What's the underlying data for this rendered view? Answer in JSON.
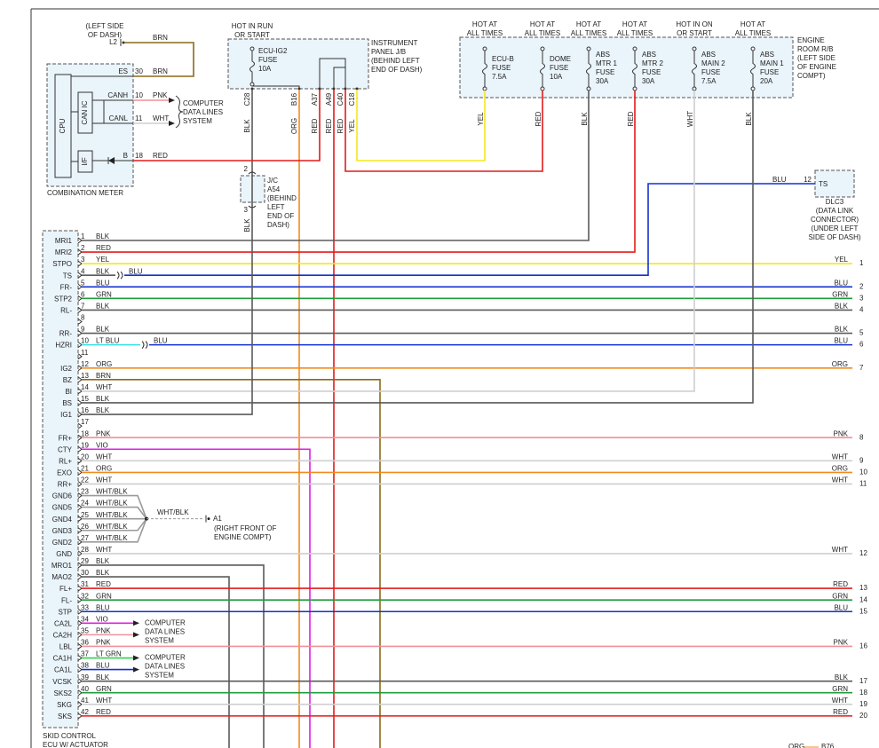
{
  "engine_room": {
    "label": [
      "ENGINE",
      "ROOM R/B",
      "(LEFT SIDE",
      "OF ENGINE",
      "COMPT)"
    ],
    "fuses": [
      {
        "header": [
          "HOT AT",
          "ALL TIMES"
        ],
        "label": [
          "ECU-B",
          "FUSE",
          "7.5A"
        ],
        "wire": "YEL"
      },
      {
        "header": [
          "HOT AT",
          "ALL TIMES"
        ],
        "label": [
          "DOME",
          "FUSE",
          "10A"
        ],
        "wire": "RED"
      },
      {
        "header": [
          "HOT AT",
          "ALL TIMES"
        ],
        "label": [
          "ABS",
          "MTR 1",
          "FUSE",
          "30A"
        ],
        "wire": "BLK"
      },
      {
        "header": [
          "HOT AT",
          "ALL TIMES"
        ],
        "label": [
          "ABS",
          "MTR 2",
          "FUSE",
          "30A"
        ],
        "wire": "RED"
      },
      {
        "header": [
          "HOT IN ON",
          "OR START"
        ],
        "label": [
          "ABS",
          "MAIN 2",
          "FUSE",
          "7.5A"
        ],
        "wire": "WHT"
      },
      {
        "header": [
          "HOT AT",
          "ALL TIMES"
        ],
        "label": [
          "ABS",
          "MAIN 1",
          "FUSE",
          "20A"
        ],
        "wire": "BLK"
      }
    ]
  },
  "junction_block": {
    "header": [
      "HOT IN RUN",
      "OR START"
    ],
    "fuse": [
      "ECU-IG2",
      "FUSE",
      "10A"
    ],
    "label": [
      "INSTRUMENT",
      "PANEL J/B",
      "(BEHIND LEFT",
      "END OF DASH)"
    ],
    "pins": [
      {
        "name": "C28",
        "wire": "BLK"
      },
      {
        "name": "B16",
        "wire": "ORG"
      },
      {
        "name": "A37",
        "wire": "RED"
      },
      {
        "name": "A49",
        "wire": "RED"
      },
      {
        "name": "C40",
        "wire": "RED"
      },
      {
        "name": "C18",
        "wire": "YEL"
      }
    ]
  },
  "junction_connector": {
    "label": [
      "J/C",
      "A54",
      "(BEHIND",
      "LEFT",
      "END OF",
      "DASH)"
    ],
    "pins": [
      2,
      3
    ],
    "wire": "BLK"
  },
  "combination_meter": {
    "label": "COMBINATION METER",
    "location": [
      "(LEFT SIDE",
      "OF DASH)"
    ],
    "ground": {
      "name": "L2",
      "wire": "BRN"
    },
    "blocks": [
      "CPU",
      "CAN IC",
      "I/F"
    ],
    "pins": [
      {
        "name": "ES",
        "num": 30,
        "wire": "BRN"
      },
      {
        "name": "CANH",
        "num": 10,
        "wire": "PNK"
      },
      {
        "name": "CANL",
        "num": 11,
        "wire": "WHT"
      },
      {
        "name": "B",
        "num": 18,
        "wire": "RED"
      }
    ],
    "data_lines": [
      "COMPUTER",
      "DATA LINES",
      "SYSTEM"
    ]
  },
  "dlc3": {
    "pin_name": "TS",
    "num": 12,
    "wire": "BLU",
    "label": [
      "DLC3",
      "(DATA LINK",
      "CONNECTOR)",
      "(UNDER LEFT",
      "SIDE OF DASH)"
    ]
  },
  "ecu": {
    "label": [
      "SKID CONTROL",
      "ECU W/ ACTUATOR"
    ],
    "pins": [
      {
        "num": 1,
        "name": "MRI1",
        "color": "BLK"
      },
      {
        "num": 2,
        "name": "MRI2",
        "color": "RED"
      },
      {
        "num": 3,
        "name": "STPO",
        "color": "YEL",
        "right_color": "YEL",
        "right_num": 1
      },
      {
        "num": 4,
        "name": "TS",
        "color": "BLK",
        "splice_color": "BLU"
      },
      {
        "num": 5,
        "name": "FR-",
        "color": "BLU",
        "right_color": "BLU",
        "right_num": 2
      },
      {
        "num": 6,
        "name": "STP2",
        "color": "GRN",
        "right_color": "GRN",
        "right_num": 3
      },
      {
        "num": 7,
        "name": "RL-",
        "color": "BLK",
        "right_color": "BLK",
        "right_num": 4
      },
      {
        "num": 8
      },
      {
        "num": 9,
        "name": "RR-",
        "color": "BLK",
        "right_color": "BLK",
        "right_num": 5
      },
      {
        "num": 10,
        "name": "HZRI",
        "color": "LT BLU",
        "splice_color": "BLU",
        "right_color": "BLU",
        "right_num": 6
      },
      {
        "num": 11
      },
      {
        "num": 12,
        "name": "IG2",
        "color": "ORG",
        "right_color": "ORG",
        "right_num": 7
      },
      {
        "num": 13,
        "name": "BZ",
        "color": "BRN"
      },
      {
        "num": 14,
        "name": "BI",
        "color": "WHT"
      },
      {
        "num": 15,
        "name": "BS",
        "color": "BLK"
      },
      {
        "num": 16,
        "name": "IG1",
        "color": "BLK"
      },
      {
        "num": 17
      },
      {
        "num": 18,
        "name": "FR+",
        "color": "PNK",
        "right_color": "PNK",
        "right_num": 8
      },
      {
        "num": 19,
        "name": "CTY",
        "color": "VIO"
      },
      {
        "num": 20,
        "name": "RL+",
        "color": "WHT",
        "right_color": "WHT",
        "right_num": 9
      },
      {
        "num": 21,
        "name": "EXO",
        "color": "ORG",
        "right_color": "ORG",
        "right_num": 10
      },
      {
        "num": 22,
        "name": "RR+",
        "color": "WHT",
        "right_color": "WHT",
        "right_num": 11
      },
      {
        "num": 23,
        "name": "GND6",
        "color": "WHT/BLK"
      },
      {
        "num": 24,
        "name": "GND5",
        "color": "WHT/BLK"
      },
      {
        "num": 25,
        "name": "GND4",
        "color": "WHT/BLK"
      },
      {
        "num": 26,
        "name": "GND3",
        "color": "WHT/BLK"
      },
      {
        "num": 27,
        "name": "GND2",
        "color": "WHT/BLK"
      },
      {
        "num": 28,
        "name": "GND",
        "color": "WHT",
        "right_color": "WHT",
        "right_num": 12
      },
      {
        "num": 29,
        "name": "MRO1",
        "color": "BLK"
      },
      {
        "num": 30,
        "name": "MAO2",
        "color": "BLK"
      },
      {
        "num": 31,
        "name": "FL+",
        "color": "RED",
        "right_color": "RED",
        "right_num": 13
      },
      {
        "num": 32,
        "name": "FL-",
        "color": "GRN",
        "right_color": "GRN",
        "right_num": 14
      },
      {
        "num": 33,
        "name": "STP",
        "color": "BLU",
        "right_color": "BLU",
        "right_num": 15
      },
      {
        "num": 34,
        "name": "CA2L",
        "color": "VIO"
      },
      {
        "num": 35,
        "name": "CA2H",
        "color": "PNK"
      },
      {
        "num": 36,
        "name": "LBL",
        "color": "PNK",
        "right_color": "PNK",
        "right_num": 16
      },
      {
        "num": 37,
        "name": "CA1H",
        "color": "LT GRN"
      },
      {
        "num": 38,
        "name": "CA1L",
        "color": "BLU"
      },
      {
        "num": 39,
        "name": "VCSK",
        "color": "BLK",
        "right_color": "BLK",
        "right_num": 17
      },
      {
        "num": 40,
        "name": "SKS2",
        "color": "GRN",
        "right_color": "GRN",
        "right_num": 18
      },
      {
        "num": 41,
        "name": "SKG",
        "color": "WHT",
        "right_color": "WHT",
        "right_num": 19
      },
      {
        "num": 42,
        "name": "SKS",
        "color": "RED",
        "right_color": "RED",
        "right_num": 20
      }
    ],
    "ground": {
      "wire": "WHT/BLK",
      "name": "A1",
      "location": [
        "(RIGHT FRONT OF",
        "ENGINE COMPT)"
      ]
    },
    "data_lines": [
      [
        "COMPUTER",
        "DATA LINES",
        "SYSTEM"
      ],
      [
        "COMPUTER",
        "DATA LINES",
        "SYSTEM"
      ]
    ]
  },
  "footer": {
    "wire": "ORG",
    "connector": "B76"
  },
  "wire_colors": {
    "BLK": "#5a5a5a",
    "RED": "#e21b1b",
    "YEL": "#f2e81e",
    "BLU": "#1230d2",
    "GRN": "#1f9c3c",
    "LT BLU": "#2fe0e6",
    "ORG": "#f28a1e",
    "BRN": "#8a6a1a",
    "WHT": "#cfcfcf",
    "PNK": "#f0909a",
    "VIO": "#e01ee6",
    "WHT/BLK": "#9a9a9a",
    "LT GRN": "#2cd44a"
  }
}
